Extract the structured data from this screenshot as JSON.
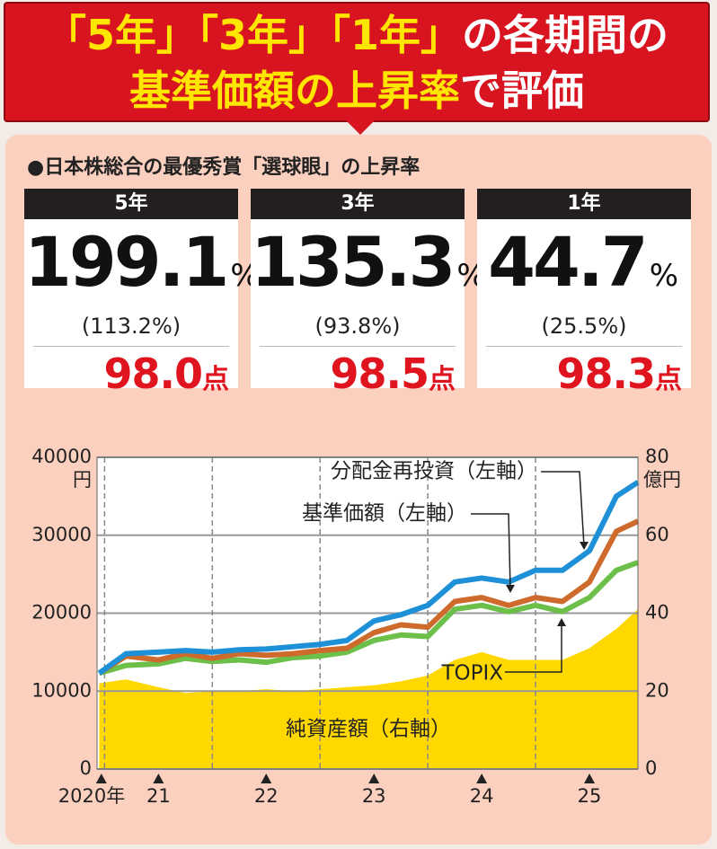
{
  "header": {
    "lines": [
      [
        {
          "text": "「5年」",
          "highlight": true
        },
        {
          "text": "「3年」",
          "highlight": true
        },
        {
          "text": "「1年」",
          "highlight": true
        },
        {
          "text": "の各期間の",
          "highlight": false
        }
      ],
      [
        {
          "text": "基準価額の上昇率",
          "highlight": true
        },
        {
          "text": "で評価",
          "highlight": false
        }
      ]
    ]
  },
  "summary": {
    "title": "●日本株総合の最優秀賞「選球眼」の上昇率",
    "cards": [
      {
        "period": "5年",
        "value": "199.1",
        "unit": "%",
        "sub": "(113.2%)",
        "score": "98.0",
        "score_unit": "点"
      },
      {
        "period": "3年",
        "value": "135.3",
        "unit": "%",
        "sub": "(93.8%)",
        "score": "98.5",
        "score_unit": "点"
      },
      {
        "period": "1年",
        "value": "44.7",
        "unit": "%",
        "sub": "(25.5%)",
        "score": "98.3",
        "score_unit": "点"
      }
    ]
  },
  "chart_data": {
    "type": "line",
    "x": [
      2020.45,
      2020.7,
      2021,
      2021.25,
      2021.5,
      2021.75,
      2022,
      2022.25,
      2022.5,
      2022.75,
      2023,
      2023.25,
      2023.5,
      2023.75,
      2024,
      2024.25,
      2024.5,
      2024.75,
      2025,
      2025.25,
      2025.45
    ],
    "series": [
      {
        "name": "純資産額（右軸）",
        "color": "#ffd800",
        "axis": "y2",
        "style": "area",
        "values": [
          22,
          23,
          21,
          19.5,
          20,
          20,
          20.5,
          20,
          20.5,
          21,
          21.5,
          22.5,
          24,
          28,
          30,
          28,
          28,
          28,
          31,
          36,
          41
        ]
      },
      {
        "name": "TOPIX",
        "color": "#6cc04a",
        "style": "line",
        "values": [
          12300,
          13300,
          13500,
          14200,
          13800,
          14000,
          13700,
          14300,
          14500,
          15000,
          16500,
          17200,
          17000,
          20500,
          21000,
          20200,
          21000,
          20200,
          22000,
          25500,
          26500
        ]
      },
      {
        "name": "基準価額（左軸）",
        "color": "#cd6a2c",
        "style": "line",
        "values": [
          12300,
          14500,
          14000,
          14800,
          14200,
          14800,
          14600,
          14800,
          15200,
          15500,
          17500,
          18500,
          18200,
          21500,
          22000,
          21000,
          22000,
          21500,
          24000,
          30500,
          31800
        ]
      },
      {
        "name": "分配金再投資（左軸）",
        "color": "#1e90d8",
        "style": "line",
        "values": [
          12300,
          14800,
          15000,
          15200,
          15000,
          15300,
          15400,
          15700,
          16000,
          16500,
          19000,
          19800,
          21000,
          24000,
          24500,
          24000,
          25500,
          25500,
          28000,
          35000,
          36800
        ]
      }
    ],
    "xlim": [
      2020.43,
      2025.45
    ],
    "xticks": [
      {
        "value": 2020.47,
        "label": "2020年"
      },
      {
        "value": 2021,
        "label": "21"
      },
      {
        "value": 2022,
        "label": "22"
      },
      {
        "value": 2023,
        "label": "23"
      },
      {
        "value": 2024,
        "label": "24"
      },
      {
        "value": 2025,
        "label": "25"
      }
    ],
    "vgrid": [
      2020.5,
      2021.5,
      2022.5,
      2023.5,
      2024.5
    ],
    "ylim": [
      0,
      40000
    ],
    "yticks": [
      0,
      10000,
      20000,
      30000,
      40000
    ],
    "y_unit": "円",
    "y2lim": [
      0,
      80
    ],
    "y2ticks": [
      0,
      20,
      40,
      60,
      80
    ],
    "y2_unit": "億円",
    "grid": true
  }
}
